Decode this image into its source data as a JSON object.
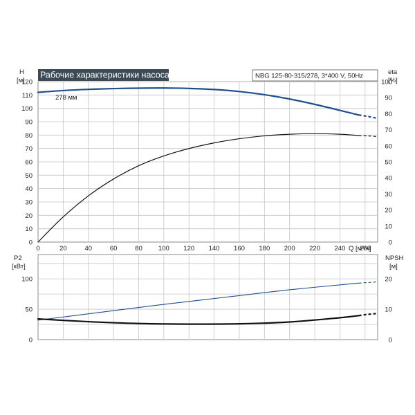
{
  "chart_data": {
    "type": "line",
    "title": "Рабочие характеристики насоса",
    "model_info": "NBG 125-80-315/278, 3*400 V, 50Hz",
    "colors": {
      "title_bg": "#3c4a55",
      "head": "#1f4e8c",
      "p2": "#1f4e8c",
      "eta": "#111111",
      "npsh": "#111111",
      "grid": "#c4c4c4"
    },
    "upper": {
      "left_axis": {
        "label_line1": "H",
        "label_line2": "[м]",
        "ticks": [
          "0",
          "10",
          "20",
          "30",
          "40",
          "50",
          "60",
          "70",
          "80",
          "90",
          "100",
          "110",
          "120"
        ],
        "ylim": [
          0,
          120
        ]
      },
      "right_axis": {
        "label_line1": "eta",
        "label_line2": "[%]",
        "ticks": [
          "0",
          "10",
          "20",
          "30",
          "40",
          "50",
          "60",
          "70",
          "80",
          "90",
          "100"
        ],
        "ylim": [
          0,
          100
        ]
      },
      "x_axis": {
        "label": "Q [м³/ч]",
        "ticks": [
          "0",
          "20",
          "40",
          "60",
          "80",
          "100",
          "120",
          "140",
          "160",
          "180",
          "200",
          "220",
          "240",
          "260"
        ],
        "xlim": [
          0,
          270
        ]
      },
      "series": [
        {
          "name": "278 мм",
          "axis": "left",
          "x": [
            0,
            20,
            40,
            60,
            80,
            100,
            120,
            140,
            160,
            180,
            200,
            220,
            240,
            255,
            262,
            270
          ],
          "y": [
            112,
            113.3,
            114.2,
            114.8,
            115.1,
            115.2,
            114.9,
            114.1,
            112.6,
            110.2,
            107,
            103,
            98.5,
            95,
            94,
            92.5
          ],
          "dashed_from": 255
        },
        {
          "name": "eta",
          "axis": "right",
          "x": [
            0,
            20,
            40,
            60,
            80,
            100,
            120,
            140,
            160,
            180,
            200,
            220,
            240,
            255,
            262,
            270
          ],
          "y": [
            0,
            15.7,
            28.8,
            39.3,
            47.6,
            53.7,
            58.3,
            61.8,
            64.4,
            66.2,
            67.2,
            67.6,
            67.2,
            66.4,
            66.2,
            65.7
          ],
          "dashed_from": 255
        }
      ]
    },
    "lower": {
      "left_axis": {
        "label_line1": "P2",
        "label_line2": "[кВт]",
        "ticks": [
          "0",
          "50",
          "100"
        ],
        "ylim": [
          0,
          140
        ]
      },
      "right_axis": {
        "label_line1": "NPSH",
        "label_line2": "[м]",
        "ticks": [
          "0",
          "10",
          "20"
        ],
        "ylim": [
          0,
          28
        ]
      },
      "x_axis": {
        "ticks": [],
        "xlim": [
          0,
          270
        ]
      },
      "series": [
        {
          "name": "P2",
          "axis": "left",
          "x": [
            0,
            50,
            100,
            150,
            200,
            255,
            270
          ],
          "y": [
            32,
            45,
            58,
            70,
            82,
            93,
            95
          ],
          "dashed_from": 255
        },
        {
          "name": "NPSH",
          "axis": "right",
          "x": [
            0,
            40,
            80,
            120,
            160,
            200,
            240,
            255,
            262,
            270
          ],
          "y": [
            6.8,
            5.9,
            5.3,
            5.1,
            5.2,
            5.8,
            7.2,
            7.9,
            8.3,
            8.6
          ],
          "dashed_from": 255
        }
      ]
    }
  }
}
